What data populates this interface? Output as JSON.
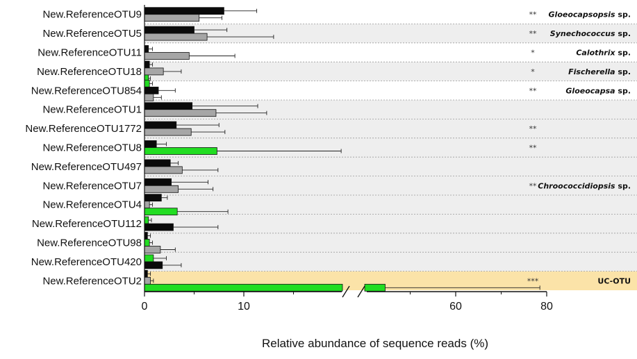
{
  "chart_data": {
    "type": "bar",
    "orientation": "horizontal",
    "xlabel": "Relative abundance of sequence reads (%)",
    "x_ticks": [
      "0",
      "10",
      "60",
      "80"
    ],
    "x_axis_break": [
      20,
      40
    ],
    "xlim": [
      0,
      80
    ],
    "colors": {
      "black_series": "#0a0a0a",
      "grey_series": "#a6a6a6",
      "green_series": "#22dd22",
      "band_grey": "#eeeeee",
      "band_highlight": "#fbe3a8"
    },
    "categories": [
      "New.ReferenceOTU9",
      "New.ReferenceOTU5",
      "New.ReferenceOTU11",
      "New.ReferenceOTU18",
      "New.ReferenceOTU854",
      "New.ReferenceOTU1",
      "New.ReferenceOTU1772",
      "New.ReferenceOTU8",
      "New.ReferenceOTU497",
      "New.ReferenceOTU7",
      "New.ReferenceOTU4",
      "New.ReferenceOTU112",
      "New.ReferenceOTU98",
      "New.ReferenceOTU420",
      "New.ReferenceOTU2"
    ],
    "rows": [
      {
        "bars": [
          {
            "s": "black",
            "v": 8.0,
            "e": 3.3
          },
          {
            "s": "grey",
            "v": 5.5,
            "e": 2.3
          }
        ]
      },
      {
        "bars": [
          {
            "s": "black",
            "v": 5.0,
            "e": 3.3
          },
          {
            "s": "grey",
            "v": 6.3,
            "e": 6.7
          }
        ]
      },
      {
        "bars": [
          {
            "s": "black",
            "v": 0.4,
            "e": 0.4
          },
          {
            "s": "grey",
            "v": 4.5,
            "e": 4.6
          }
        ]
      },
      {
        "bars": [
          {
            "s": "black",
            "v": 0.5,
            "e": 0.3
          },
          {
            "s": "grey",
            "v": 1.9,
            "e": 1.8
          },
          {
            "s": "green",
            "v": 0.4,
            "e": 0.2
          }
        ]
      },
      {
        "bars": [
          {
            "s": "green",
            "v": 0.5,
            "e": 0.3
          },
          {
            "s": "black",
            "v": 1.4,
            "e": 1.7
          },
          {
            "s": "grey",
            "v": 0.9,
            "e": 0.8
          }
        ]
      },
      {
        "bars": [
          {
            "s": "black",
            "v": 4.8,
            "e": 6.6
          },
          {
            "s": "grey",
            "v": 7.2,
            "e": 5.1
          }
        ]
      },
      {
        "bars": [
          {
            "s": "black",
            "v": 3.2,
            "e": 4.3
          },
          {
            "s": "grey",
            "v": 4.7,
            "e": 3.4
          }
        ]
      },
      {
        "bars": [
          {
            "s": "black",
            "v": 1.2,
            "e": 1.0
          },
          {
            "s": "green",
            "v": 7.3,
            "e": 12.5
          }
        ]
      },
      {
        "bars": [
          {
            "s": "black",
            "v": 2.6,
            "e": 0.8
          },
          {
            "s": "grey",
            "v": 3.8,
            "e": 3.6
          }
        ]
      },
      {
        "bars": [
          {
            "s": "black",
            "v": 2.7,
            "e": 3.7
          },
          {
            "s": "grey",
            "v": 3.4,
            "e": 3.5
          }
        ]
      },
      {
        "bars": [
          {
            "s": "black",
            "v": 1.7,
            "e": 0.6
          },
          {
            "s": "grey",
            "v": 0.5,
            "e": 0.3
          },
          {
            "s": "green",
            "v": 3.3,
            "e": 5.1
          }
        ]
      },
      {
        "bars": [
          {
            "s": "green",
            "v": 0.4,
            "e": 0.3
          },
          {
            "s": "black",
            "v": 2.9,
            "e": 4.5
          }
        ]
      },
      {
        "bars": [
          {
            "s": "black",
            "v": 0.3,
            "e": 0.3
          },
          {
            "s": "green",
            "v": 0.5,
            "e": 0.3
          },
          {
            "s": "grey",
            "v": 1.6,
            "e": 1.5
          }
        ]
      },
      {
        "bars": [
          {
            "s": "green",
            "v": 0.9,
            "e": 1.3
          },
          {
            "s": "black",
            "v": 1.8,
            "e": 1.9
          }
        ]
      },
      {
        "bars": [
          {
            "s": "black",
            "v": 0.3,
            "e": 0.3
          },
          {
            "s": "grey",
            "v": 0.6,
            "e": 0.3
          },
          {
            "s": "green",
            "v": 44.5,
            "e": 34.0
          }
        ]
      }
    ],
    "significance": [
      "**",
      "**",
      "*",
      "*",
      "**",
      "",
      "**",
      "**",
      "",
      "**",
      "",
      "",
      "",
      "",
      "***"
    ],
    "taxa": [
      {
        "genus": "Gloeocapsopsis",
        "suffix": " sp.",
        "row_from": 0,
        "row_to": 0,
        "band": "white"
      },
      {
        "genus": "Synechococcus",
        "suffix": " sp.",
        "row_from": 1,
        "row_to": 1,
        "band": "grey"
      },
      {
        "genus": "Calothrix",
        "suffix": " sp.",
        "row_from": 2,
        "row_to": 2,
        "band": "white"
      },
      {
        "genus": "Fischerella",
        "suffix": " sp.",
        "row_from": 3,
        "row_to": 3,
        "band": "grey"
      },
      {
        "genus": "Gloeocapsa",
        "suffix": " sp.",
        "row_from": 4,
        "row_to": 4,
        "band": "white"
      },
      {
        "genus": "Chroococcidiopsis",
        "suffix": " sp.",
        "row_from": 5,
        "row_to": 13,
        "band": "grey"
      },
      {
        "genus": "UC-OTU",
        "suffix": "",
        "row_from": 14,
        "row_to": 14,
        "band": "highlight",
        "upright": true
      }
    ]
  }
}
